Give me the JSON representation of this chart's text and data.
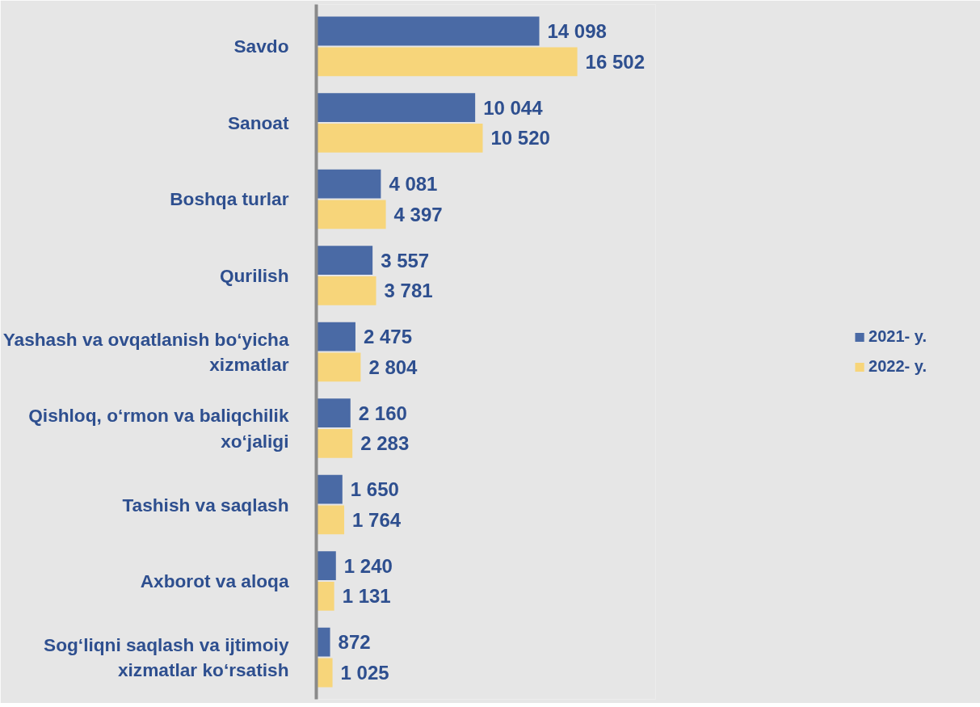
{
  "chart_data": {
    "type": "bar",
    "orientation": "horizontal",
    "categories": [
      "Savdo",
      "Sanoat",
      "Boshqa turlar",
      "Qurilish",
      "Yashash va ovqatlanish bo‘yicha xizmatlar",
      "Qishloq, o‘rmon va baliqchilik xo‘jaligi",
      "Tashish va saqlash",
      "Axborot va aloqa",
      "Sog‘liqni saqlash va ijtimoiy xizmatlar ko‘rsatish"
    ],
    "series": [
      {
        "name": "2021- y.",
        "color": "#4a6aa5",
        "values": [
          14098,
          10044,
          4081,
          3557,
          2475,
          2160,
          1650,
          1240,
          872
        ]
      },
      {
        "name": "2022- y.",
        "color": "#f7d57a",
        "values": [
          16502,
          10520,
          4397,
          3781,
          2804,
          2283,
          1764,
          1131,
          1025
        ]
      }
    ],
    "data_labels": true,
    "legend": "right"
  }
}
